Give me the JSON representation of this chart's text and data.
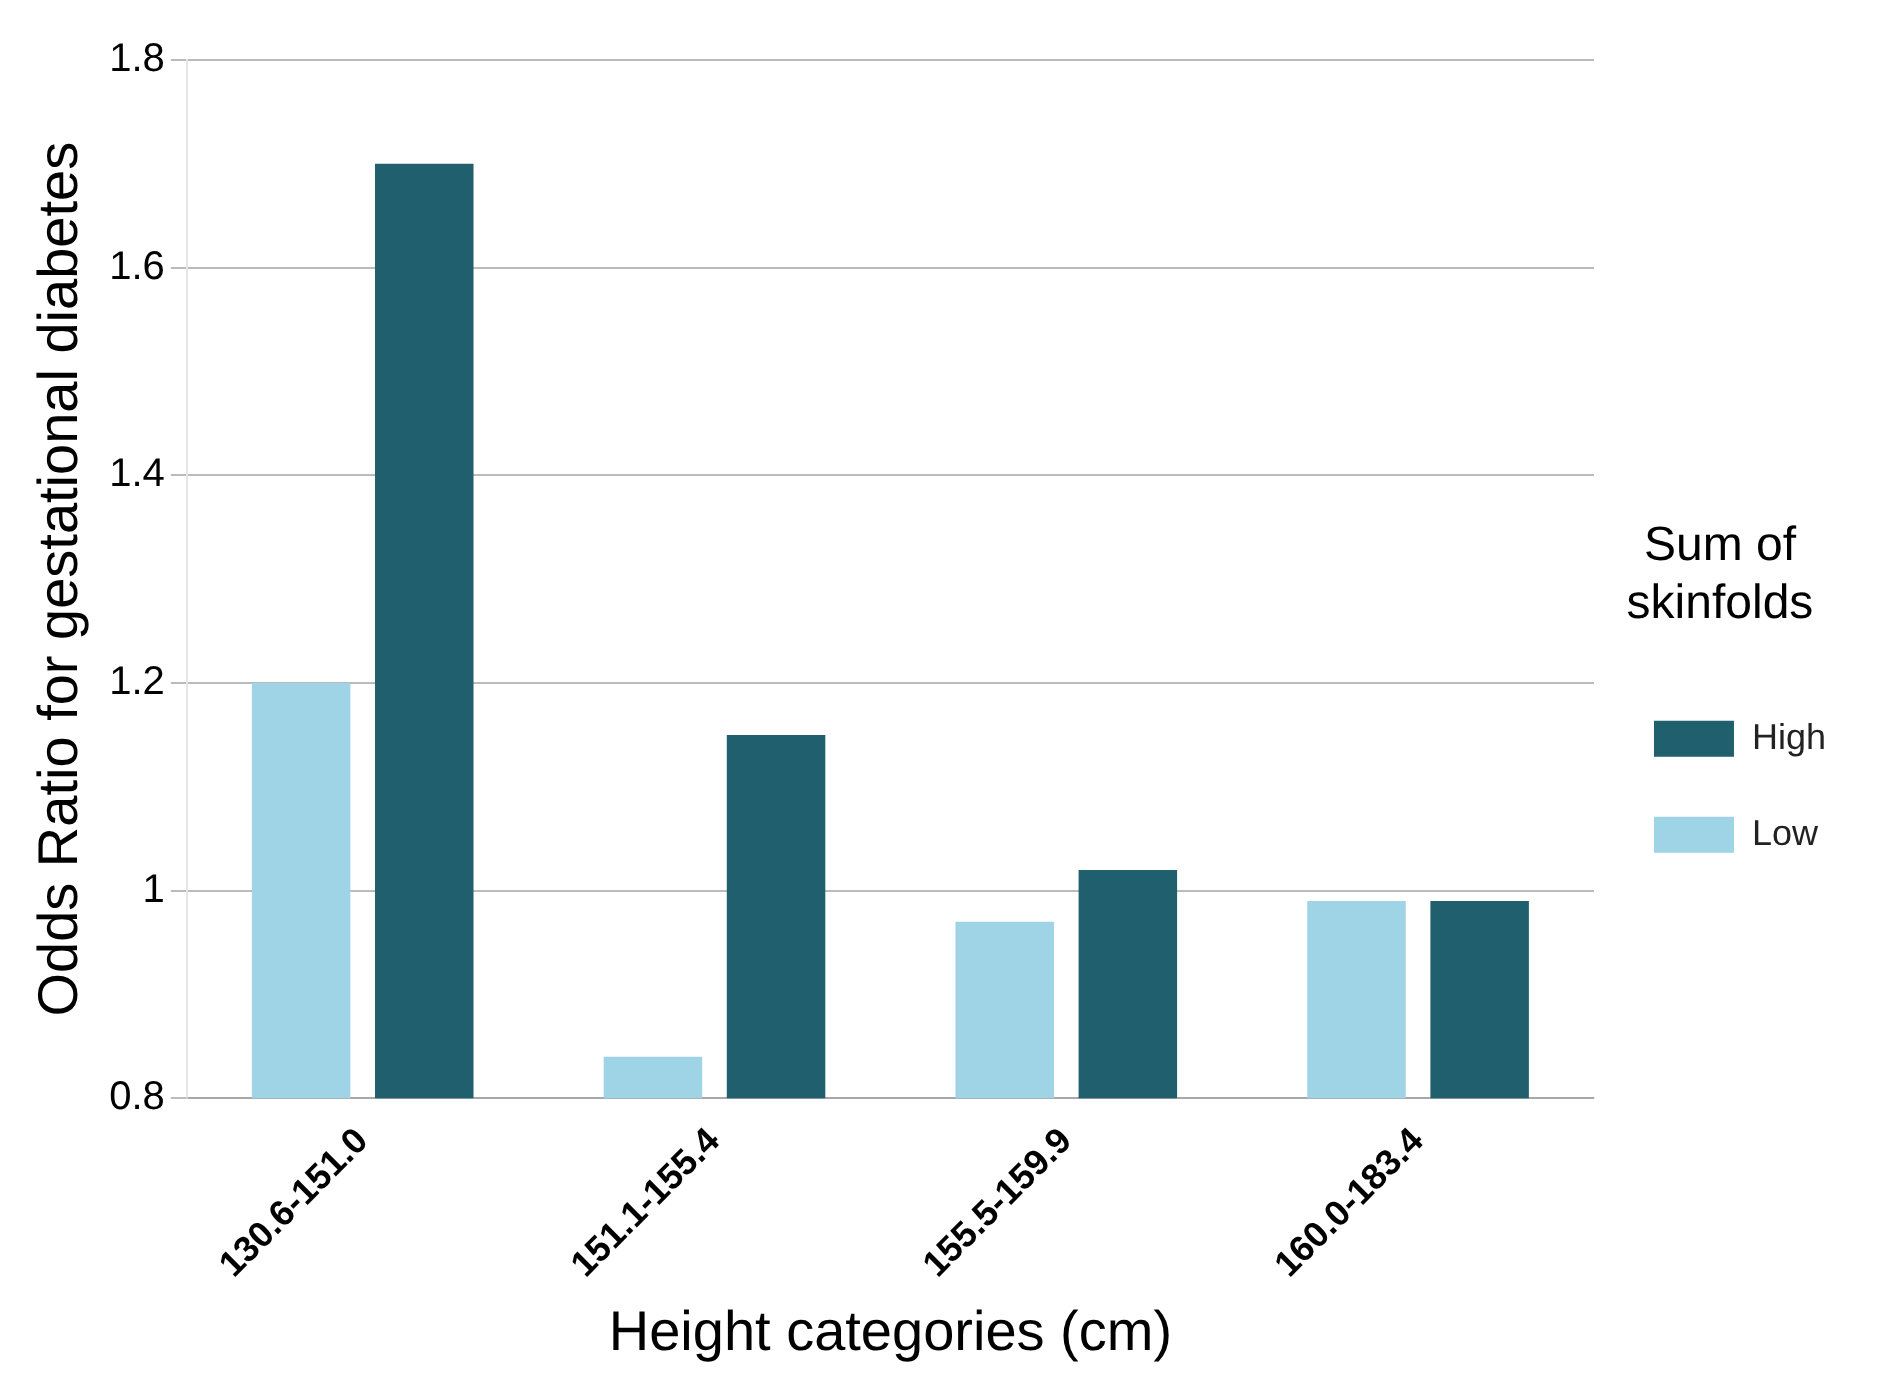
{
  "chart_data": {
    "type": "bar",
    "xlabel": "Height categories (cm)",
    "ylabel": "Odds Ratio for gestational diabetes",
    "legend_title": "Sum of skinfolds",
    "categories": [
      "130.6-151.0",
      "151.1-155.4",
      "155.5-159.9",
      "160.0-183.4"
    ],
    "series": [
      {
        "name": "Low",
        "color": "#9fd3e6",
        "values": [
          1.2,
          0.84,
          0.97,
          0.99
        ]
      },
      {
        "name": "High",
        "color": "#1f5f6e",
        "values": [
          1.7,
          1.15,
          1.02,
          0.99
        ]
      }
    ],
    "ylim": [
      0.8,
      1.8
    ],
    "yticks": [
      0.8,
      1,
      1.2,
      1.4,
      1.6,
      1.8
    ],
    "grid": "y",
    "legend": "right"
  }
}
